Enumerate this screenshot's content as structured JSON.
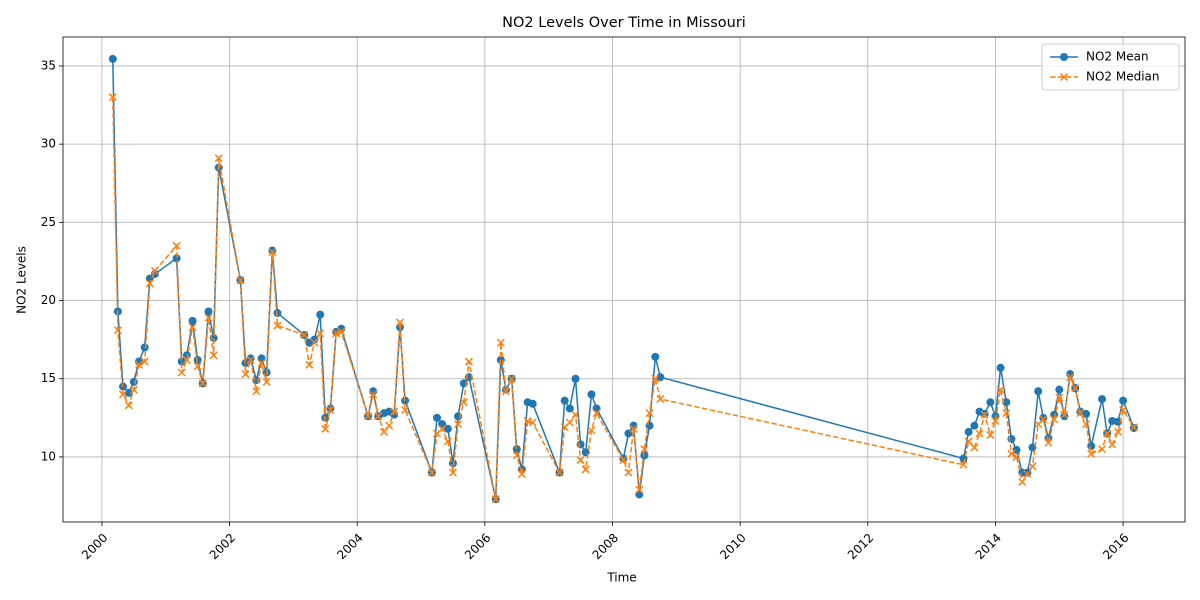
{
  "chart_data": {
    "type": "line",
    "title": "NO2 Levels Over Time in Missouri",
    "x_label": "Time",
    "y_label": "NO2 Levels",
    "x": [
      2000.17,
      2000.25,
      2000.33,
      2000.42,
      2000.5,
      2000.58,
      2000.67,
      2000.75,
      2000.83,
      2001.17,
      2001.25,
      2001.33,
      2001.42,
      2001.5,
      2001.58,
      2001.67,
      2001.75,
      2001.83,
      2002.17,
      2002.25,
      2002.33,
      2002.42,
      2002.5,
      2002.58,
      2002.67,
      2002.75,
      2003.17,
      2003.25,
      2003.33,
      2003.42,
      2003.5,
      2003.58,
      2003.67,
      2003.75,
      2004.17,
      2004.25,
      2004.33,
      2004.42,
      2004.5,
      2004.58,
      2004.67,
      2004.75,
      2005.17,
      2005.25,
      2005.33,
      2005.42,
      2005.5,
      2005.58,
      2005.67,
      2005.75,
      2006.17,
      2006.25,
      2006.33,
      2006.42,
      2006.5,
      2006.58,
      2006.67,
      2006.75,
      2007.17,
      2007.25,
      2007.33,
      2007.42,
      2007.5,
      2007.58,
      2007.67,
      2007.75,
      2008.17,
      2008.25,
      2008.33,
      2008.42,
      2008.5,
      2008.58,
      2008.67,
      2008.75,
      2013.5,
      2013.58,
      2013.67,
      2013.75,
      2013.83,
      2013.92,
      2014.0,
      2014.08,
      2014.17,
      2014.25,
      2014.33,
      2014.42,
      2014.5,
      2014.58,
      2014.67,
      2014.75,
      2014.83,
      2014.92,
      2015.0,
      2015.08,
      2015.17,
      2015.25,
      2015.33,
      2015.42,
      2015.5,
      2015.67,
      2015.75,
      2015.83,
      2015.92,
      2016.0,
      2016.17
    ],
    "series": [
      {
        "name": "NO2 Mean",
        "color": "#1f77b4",
        "marker": "o",
        "linestyle": "solid",
        "values": [
          35.45,
          19.3,
          14.5,
          14.1,
          14.8,
          16.1,
          17.0,
          21.4,
          21.7,
          22.7,
          16.1,
          16.5,
          18.7,
          16.2,
          14.7,
          19.3,
          17.6,
          28.5,
          21.3,
          16.0,
          16.3,
          14.9,
          16.3,
          15.4,
          23.2,
          19.2,
          17.8,
          17.3,
          17.5,
          19.1,
          12.5,
          13.1,
          18.0,
          18.2,
          12.6,
          14.2,
          12.6,
          12.8,
          12.9,
          12.7,
          18.3,
          13.6,
          9.0,
          12.5,
          12.1,
          11.8,
          9.6,
          12.6,
          14.7,
          15.1,
          7.3,
          16.2,
          14.3,
          15.0,
          10.5,
          9.2,
          13.5,
          13.4,
          9.0,
          13.6,
          13.1,
          15.0,
          10.8,
          10.3,
          14.0,
          13.1,
          9.9,
          11.5,
          12.0,
          7.6,
          10.1,
          12.0,
          16.4,
          15.1,
          9.9,
          11.6,
          12.0,
          12.9,
          12.75,
          13.5,
          12.6,
          15.7,
          13.5,
          11.15,
          10.45,
          9.0,
          9.0,
          10.6,
          14.2,
          12.5,
          11.2,
          12.7,
          14.3,
          12.6,
          15.3,
          14.4,
          12.9,
          12.75,
          10.7,
          13.7,
          11.5,
          12.3,
          12.25,
          13.6,
          11.85
        ]
      },
      {
        "name": "NO2 Median",
        "color": "#ff7f0e",
        "marker": "x",
        "linestyle": "dashed",
        "values": [
          33.0,
          18.1,
          14.0,
          13.3,
          14.3,
          15.9,
          16.1,
          21.1,
          21.9,
          23.5,
          15.4,
          16.2,
          18.3,
          15.8,
          14.7,
          18.9,
          16.5,
          29.1,
          21.3,
          15.3,
          16.2,
          14.2,
          16.0,
          14.8,
          23.1,
          18.4,
          17.8,
          15.9,
          17.3,
          17.9,
          11.8,
          13.0,
          17.9,
          18.0,
          12.6,
          14.0,
          12.6,
          11.6,
          12.0,
          12.9,
          18.6,
          13.0,
          9.0,
          11.5,
          11.8,
          11.0,
          9.0,
          12.1,
          13.5,
          16.1,
          7.3,
          17.3,
          14.2,
          15.0,
          10.1,
          8.9,
          12.3,
          12.2,
          9.0,
          11.9,
          12.2,
          12.7,
          9.8,
          9.2,
          11.7,
          12.8,
          9.8,
          9.0,
          11.8,
          7.9,
          10.5,
          12.8,
          15.0,
          13.7,
          9.5,
          11.0,
          10.6,
          11.5,
          12.7,
          11.4,
          12.3,
          14.3,
          12.8,
          10.2,
          10.0,
          8.4,
          8.9,
          9.4,
          12.1,
          12.4,
          10.9,
          12.4,
          13.8,
          12.7,
          15.1,
          14.4,
          12.8,
          12.1,
          10.2,
          10.5,
          11.5,
          10.8,
          11.6,
          13.0,
          11.9
        ]
      }
    ],
    "xlim": [
      1999.39,
      2016.97
    ],
    "ylim": [
      5.84,
      36.85
    ],
    "xticks": [
      2000,
      2002,
      2004,
      2006,
      2008,
      2010,
      2012,
      2014,
      2016
    ],
    "yticks": [
      10,
      15,
      20,
      25,
      30,
      35
    ],
    "grid": true,
    "legend": "upper right"
  }
}
